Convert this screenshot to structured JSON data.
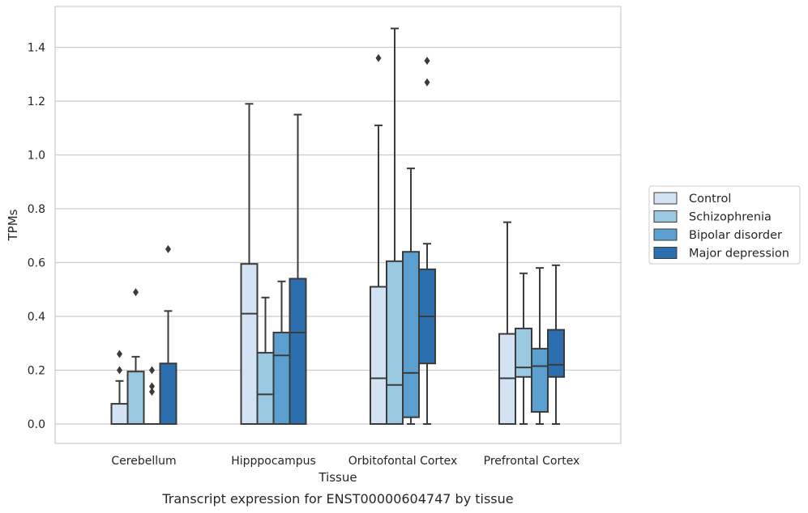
{
  "chart_data": {
    "type": "box",
    "title": "",
    "caption": "Transcript expression for ENST00000604747 by tissue",
    "xlabel": "Tissue",
    "ylabel": "TPMs",
    "ylim": [
      -0.07,
      1.55
    ],
    "yticks": [
      0.0,
      0.2,
      0.4,
      0.6,
      0.8,
      1.0,
      1.2,
      1.4
    ],
    "grid": true,
    "legend_position": "right",
    "categories": [
      "Cerebellum",
      "Hipppocampus",
      "Orbitofontal Cortex",
      "Prefrontal Cortex"
    ],
    "series": [
      {
        "name": "Control",
        "color": "#d3e3f3",
        "boxes": [
          {
            "min": 0.0,
            "q1": 0.0,
            "median": 0.0,
            "q3": 0.075,
            "max": 0.16,
            "outliers": [
              0.2,
              0.26
            ]
          },
          {
            "min": 0.0,
            "q1": 0.0,
            "median": 0.41,
            "q3": 0.595,
            "max": 1.19,
            "outliers": []
          },
          {
            "min": 0.0,
            "q1": 0.0,
            "median": 0.17,
            "q3": 0.51,
            "max": 1.11,
            "outliers": [
              1.36
            ]
          },
          {
            "min": 0.0,
            "q1": 0.0,
            "median": 0.17,
            "q3": 0.335,
            "max": 0.75,
            "outliers": []
          }
        ]
      },
      {
        "name": "Schizophrenia",
        "color": "#9ac8e0",
        "boxes": [
          {
            "min": 0.0,
            "q1": 0.0,
            "median": 0.0,
            "q3": 0.195,
            "max": 0.25,
            "outliers": [
              0.49
            ]
          },
          {
            "min": 0.0,
            "q1": 0.0,
            "median": 0.11,
            "q3": 0.265,
            "max": 0.47,
            "outliers": []
          },
          {
            "min": 0.0,
            "q1": 0.0,
            "median": 0.145,
            "q3": 0.605,
            "max": 1.47,
            "outliers": []
          },
          {
            "min": 0.0,
            "q1": 0.175,
            "median": 0.21,
            "q3": 0.355,
            "max": 0.56,
            "outliers": []
          }
        ]
      },
      {
        "name": "Bipolar disorder",
        "color": "#5a9fcf",
        "boxes": [
          {
            "min": 0.0,
            "q1": 0.0,
            "median": 0.0,
            "q3": 0.0,
            "max": 0.0,
            "outliers": [
              0.12,
              0.14,
              0.2
            ]
          },
          {
            "min": 0.0,
            "q1": 0.0,
            "median": 0.255,
            "q3": 0.34,
            "max": 0.53,
            "outliers": []
          },
          {
            "min": 0.0,
            "q1": 0.025,
            "median": 0.19,
            "q3": 0.64,
            "max": 0.95,
            "outliers": []
          },
          {
            "min": 0.0,
            "q1": 0.045,
            "median": 0.215,
            "q3": 0.28,
            "max": 0.58,
            "outliers": []
          }
        ]
      },
      {
        "name": "Major depression",
        "color": "#2b6fae",
        "boxes": [
          {
            "min": 0.0,
            "q1": 0.0,
            "median": 0.0,
            "q3": 0.225,
            "max": 0.42,
            "outliers": [
              0.65
            ]
          },
          {
            "min": 0.0,
            "q1": 0.0,
            "median": 0.34,
            "q3": 0.54,
            "max": 1.15,
            "outliers": []
          },
          {
            "min": 0.0,
            "q1": 0.225,
            "median": 0.4,
            "q3": 0.575,
            "max": 0.67,
            "outliers": [
              1.27,
              1.35
            ]
          },
          {
            "min": 0.0,
            "q1": 0.175,
            "median": 0.22,
            "q3": 0.35,
            "max": 0.59,
            "outliers": []
          }
        ]
      }
    ]
  }
}
